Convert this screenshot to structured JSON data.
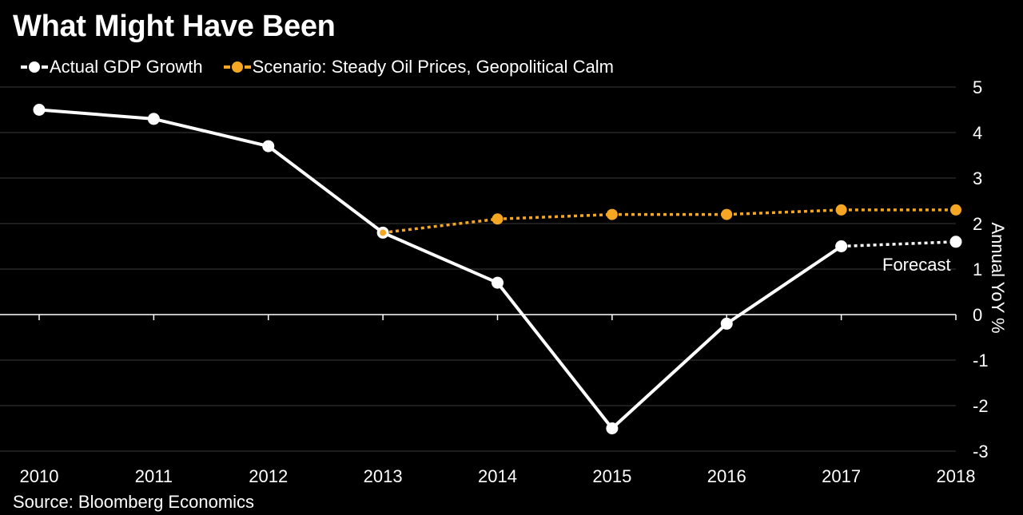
{
  "title": "What Might Have Been",
  "source": "Source: Bloomberg Economics",
  "legend": {
    "actual": "Actual GDP Growth",
    "scenario": "Scenario: Steady Oil Prices, Geopolitical Calm"
  },
  "forecast_label": "Forecast",
  "colors": {
    "background": "#000000",
    "actual": "#ffffff",
    "scenario": "#f5a623",
    "grid": "#3a3a3a",
    "axis": "#ffffff"
  },
  "chart_data": {
    "type": "line",
    "x": [
      "2010",
      "2011",
      "2012",
      "2013",
      "2014",
      "2015",
      "2016",
      "2017",
      "2018"
    ],
    "ylabel": "Annual YoY %",
    "ylim": [
      -3,
      5
    ],
    "yticks": [
      "5",
      "4",
      "3",
      "2",
      "1",
      "0",
      "-1",
      "-2",
      "-3"
    ],
    "y_axis_side": "right",
    "grid": true,
    "legend_position": "top-left",
    "series": [
      {
        "name": "Actual GDP Growth",
        "style": "solid with markers; dotted for forecast segment",
        "x": [
          "2010",
          "2011",
          "2012",
          "2013",
          "2014",
          "2015",
          "2016",
          "2017",
          "2018"
        ],
        "values": [
          4.5,
          4.3,
          3.7,
          1.8,
          0.7,
          -2.5,
          -0.2,
          1.5,
          1.6
        ],
        "forecast_from": "2017"
      },
      {
        "name": "Scenario: Steady Oil Prices, Geopolitical Calm",
        "style": "dotted with markers",
        "x": [
          "2013",
          "2014",
          "2015",
          "2016",
          "2017",
          "2018"
        ],
        "values": [
          1.8,
          2.1,
          2.2,
          2.2,
          2.3,
          2.3
        ]
      }
    ]
  }
}
